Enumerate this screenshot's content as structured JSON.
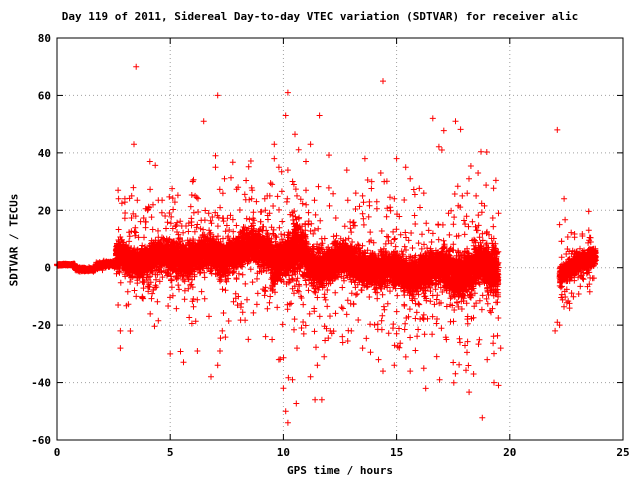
{
  "chart_data": {
    "type": "scatter",
    "title": "Day 119 of 2011, Sidereal Day-to-day VTEC variation (SDTVAR) for receiver alic",
    "xlabel": "GPS time / hours",
    "ylabel": "SDTVAR / TECUs",
    "xlim": [
      0,
      25
    ],
    "ylim": [
      -60,
      80
    ],
    "x_ticks": [
      "0",
      "5",
      "10",
      "15",
      "20",
      "25"
    ],
    "y_ticks": [
      "-60",
      "-40",
      "-20",
      "0",
      "20",
      "40",
      "60",
      "80"
    ],
    "grid": true,
    "legend": "none",
    "marker": "plus",
    "series_color": "#ff0000",
    "band_description": [
      {
        "x": [
          0.0,
          0.8
        ],
        "y_center": 1.0,
        "spread": 0.3
      },
      {
        "x": [
          0.8,
          1.7
        ],
        "y_center": -0.5,
        "spread": 0.6
      },
      {
        "x": [
          1.7,
          2.6
        ],
        "y_center": 1.0,
        "spread": 1.0
      },
      {
        "x": [
          2.6,
          5.0
        ],
        "y_center": 3.0,
        "spread": 5.0
      },
      {
        "x": [
          5.0,
          7.5
        ],
        "y_center": 4.0,
        "spread": 6.0
      },
      {
        "x": [
          7.5,
          9.5
        ],
        "y_center": 6.0,
        "spread": 6.0
      },
      {
        "x": [
          9.5,
          11.0
        ],
        "y_center": 4.0,
        "spread": 8.0
      },
      {
        "x": [
          11.0,
          14.0
        ],
        "y_center": 1.5,
        "spread": 6.0
      },
      {
        "x": [
          14.0,
          17.0
        ],
        "y_center": -1.5,
        "spread": 6.0
      },
      {
        "x": [
          17.0,
          19.5
        ],
        "y_center": -1.0,
        "spread": 8.0
      },
      {
        "x": [
          22.2,
          23.8
        ],
        "y_center": -3.0,
        "spread": 3.0,
        "trend_to": 5.0
      }
    ],
    "outliers": [
      [
        3.5,
        70
      ],
      [
        3.4,
        43
      ],
      [
        4.1,
        37
      ],
      [
        3.0,
        24
      ],
      [
        3.3,
        25
      ],
      [
        2.7,
        27
      ],
      [
        4.0,
        20
      ],
      [
        2.7,
        -13
      ],
      [
        2.8,
        -22
      ],
      [
        2.8,
        -28
      ],
      [
        3.5,
        -10
      ],
      [
        4.2,
        -9
      ],
      [
        6.0,
        30
      ],
      [
        6.7,
        19
      ],
      [
        7.0,
        39
      ],
      [
        7.1,
        60
      ],
      [
        7.0,
        35
      ],
      [
        7.4,
        31
      ],
      [
        6.2,
        -29
      ],
      [
        5.0,
        -30
      ],
      [
        6.8,
        -38
      ],
      [
        7.3,
        -22
      ],
      [
        7.2,
        -29
      ],
      [
        7.1,
        -34
      ],
      [
        8.0,
        28
      ],
      [
        8.6,
        24
      ],
      [
        9.0,
        16
      ],
      [
        9.2,
        20
      ],
      [
        9.4,
        25
      ],
      [
        9.5,
        29
      ],
      [
        9.6,
        38
      ],
      [
        9.6,
        43
      ],
      [
        9.8,
        35
      ],
      [
        10.2,
        61
      ],
      [
        10.1,
        53
      ],
      [
        10.6,
        25
      ],
      [
        10.2,
        34
      ],
      [
        11.0,
        37
      ],
      [
        11.2,
        43
      ],
      [
        11.6,
        53
      ],
      [
        11.0,
        27
      ],
      [
        9.5,
        -25
      ],
      [
        9.8,
        -32
      ],
      [
        10.0,
        -42
      ],
      [
        10.1,
        -50
      ],
      [
        10.2,
        -54
      ],
      [
        10.4,
        -39
      ],
      [
        10.6,
        -28
      ],
      [
        10.8,
        -21
      ],
      [
        11.2,
        -38
      ],
      [
        11.4,
        -46
      ],
      [
        11.7,
        -46
      ],
      [
        11.5,
        -34
      ],
      [
        11.8,
        -31
      ],
      [
        12.8,
        34
      ],
      [
        13.2,
        26
      ],
      [
        13.5,
        25
      ],
      [
        13.6,
        38
      ],
      [
        13.9,
        30
      ],
      [
        14.4,
        65
      ],
      [
        14.3,
        33
      ],
      [
        14.9,
        24
      ],
      [
        15.4,
        35
      ],
      [
        15.0,
        38
      ],
      [
        15.6,
        31
      ],
      [
        16.2,
        26
      ],
      [
        12.6,
        -24
      ],
      [
        13.0,
        -22
      ],
      [
        13.5,
        -28
      ],
      [
        14.2,
        -32
      ],
      [
        14.4,
        -36
      ],
      [
        14.9,
        -34
      ],
      [
        15.6,
        -36
      ],
      [
        16.2,
        -35
      ],
      [
        15.0,
        -23
      ],
      [
        16.6,
        52
      ],
      [
        17.0,
        41
      ],
      [
        17.6,
        51
      ],
      [
        17.9,
        25
      ],
      [
        18.2,
        31
      ],
      [
        18.6,
        33
      ],
      [
        19.5,
        19
      ],
      [
        16.9,
        -39
      ],
      [
        17.2,
        -25
      ],
      [
        17.5,
        -33
      ],
      [
        17.8,
        -26
      ],
      [
        18.4,
        -37
      ],
      [
        19.0,
        -32
      ],
      [
        19.5,
        -41
      ],
      [
        19.6,
        -28
      ],
      [
        19.3,
        -40
      ],
      [
        22.1,
        48
      ],
      [
        22.4,
        24
      ],
      [
        22.2,
        15
      ],
      [
        22.1,
        -19
      ],
      [
        22.2,
        -20
      ],
      [
        22.0,
        -22
      ]
    ]
  }
}
